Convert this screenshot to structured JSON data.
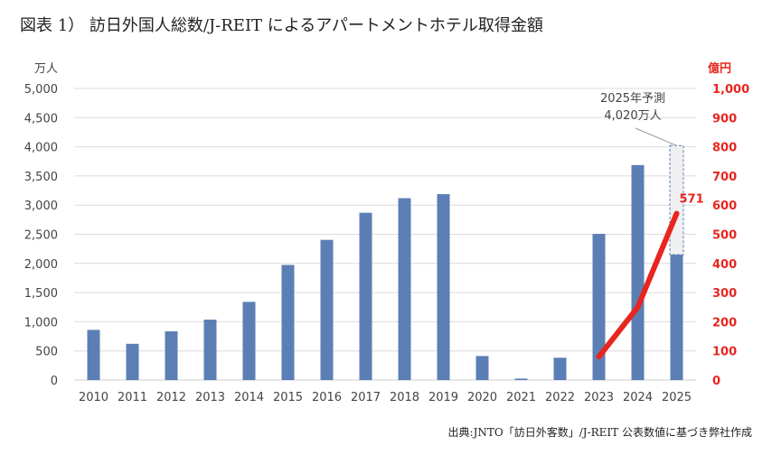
{
  "title": "図表 1） 訪日外国人総数/J-REIT によるアパートメントホテル取得金額",
  "source": "出典:JNTO「訪日外客数」/J-REIT 公表数値に基づき弊社作成",
  "chart_data": {
    "type": "bar",
    "title": "図表 1） 訪日外国人総数/J-REIT によるアパートメントホテル取得金額",
    "categories": [
      "2010",
      "2011",
      "2012",
      "2013",
      "2014",
      "2015",
      "2016",
      "2017",
      "2018",
      "2019",
      "2020",
      "2021",
      "2022",
      "2023",
      "2024",
      "2025"
    ],
    "left_axis": {
      "label": "万人",
      "ylim": [
        0,
        5000
      ],
      "ticks": [
        "0",
        "500",
        "1,000",
        "1,500",
        "2,000",
        "2,500",
        "3,000",
        "3,500",
        "4,000",
        "4,500",
        "5,000"
      ]
    },
    "right_axis": {
      "label": "億円",
      "ylim": [
        0,
        1000
      ],
      "ticks": [
        "0",
        "100",
        "200",
        "300",
        "400",
        "500",
        "600",
        "700",
        "800",
        "900",
        "1,000"
      ]
    },
    "series": [
      {
        "name": "訪日外国人総数",
        "type": "bar",
        "axis": "left",
        "color": "#5b7fb5",
        "values": [
          861,
          622,
          836,
          1036,
          1341,
          1974,
          2404,
          2869,
          3119,
          3188,
          412,
          25,
          383,
          2507,
          3687,
          2150
        ]
      },
      {
        "name": "2025年予測",
        "type": "bar-forecast",
        "axis": "left",
        "category": "2025",
        "value": 4020,
        "color": "#f0f0f0"
      },
      {
        "name": "J-REIT アパートメントホテル取得金額",
        "type": "line",
        "axis": "right",
        "color": "#e8251f",
        "x": [
          "2023",
          "2024",
          "2025"
        ],
        "values": [
          80,
          250,
          571
        ]
      }
    ],
    "annotations": [
      {
        "text": "2025年予測",
        "text2": "4,020万人",
        "target": "2025"
      },
      {
        "text": "571",
        "target": "2025"
      }
    ],
    "grid": true
  }
}
